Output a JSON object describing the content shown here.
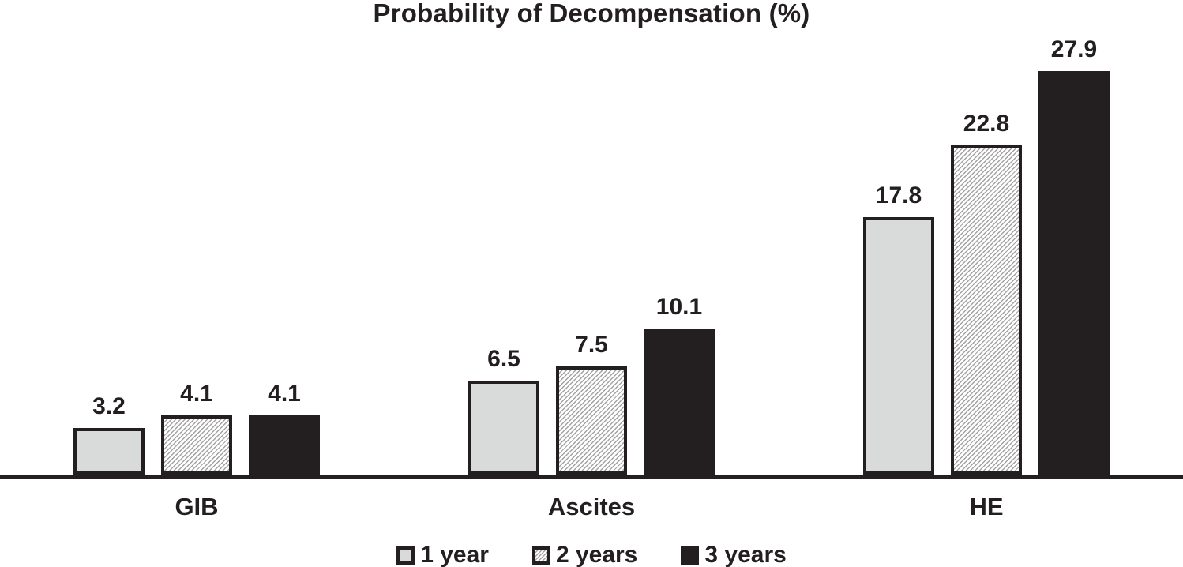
{
  "chart_data": {
    "type": "bar",
    "title": "Probability of Decompensation (%)",
    "categories": [
      "GIB",
      "Ascites",
      "HE"
    ],
    "series": [
      {
        "name": "1 year",
        "style": "light-gray",
        "values": [
          3.2,
          6.5,
          17.8
        ]
      },
      {
        "name": "2 years",
        "style": "hatched",
        "values": [
          4.1,
          7.5,
          22.8
        ]
      },
      {
        "name": "3 years",
        "style": "solid-black",
        "values": [
          4.1,
          10.1,
          27.9
        ]
      }
    ],
    "value_labels": true,
    "ylim": [
      0,
      30
    ],
    "xlabel": "",
    "ylabel": "",
    "grid": false,
    "y_axis_visible": false,
    "x_axis_visible": true,
    "legend_position": "bottom"
  },
  "colors": {
    "text": "#231f20",
    "axis": "#231f20",
    "bar_border": "#231f20",
    "series_light_gray_fill": "#d9dbdb",
    "series_hatch_line": "#a3a3a3",
    "series_hatch_background": "#ffffff",
    "series_solid_black_fill": "#231f20",
    "background": "#ffffff"
  }
}
